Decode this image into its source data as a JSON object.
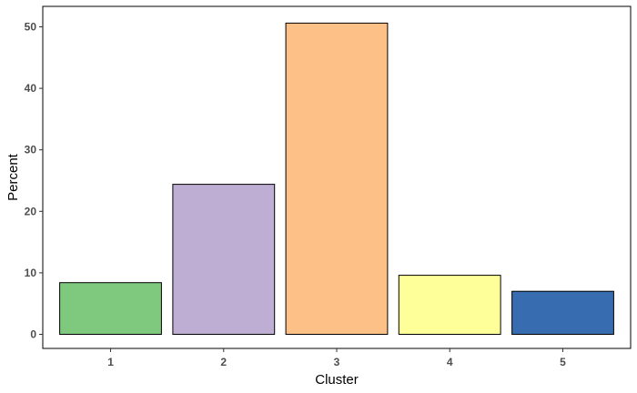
{
  "chart_data": {
    "type": "bar",
    "categories": [
      "1",
      "2",
      "3",
      "4",
      "5"
    ],
    "values": [
      8.4,
      24.4,
      50.6,
      9.6,
      7.0
    ],
    "colors": [
      "#7fc97f",
      "#beaed4",
      "#fdc086",
      "#ffff99",
      "#386cb0"
    ],
    "xlabel": "Cluster",
    "ylabel": "Percent",
    "ylim": [
      0,
      53
    ],
    "yticks": [
      0,
      10,
      20,
      30,
      40,
      50
    ],
    "grid": false,
    "bar_outline": "#000000"
  }
}
